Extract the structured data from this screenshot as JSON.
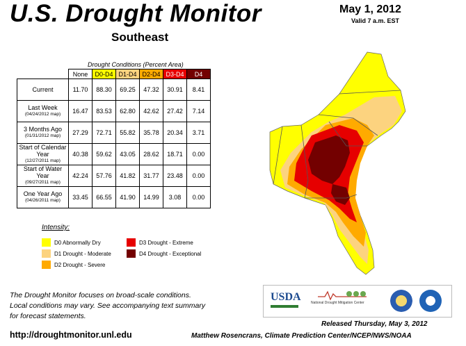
{
  "header": {
    "title": "U.S. Drought Monitor",
    "region": "Southeast",
    "date": "May 1, 2012",
    "valid": "Valid 7 a.m. EST"
  },
  "table": {
    "caption": "Drought Conditions (Percent Area)",
    "columns": [
      "None",
      "D0-D4",
      "D1-D4",
      "D2-D4",
      "D3-D4",
      "D4"
    ],
    "rows": [
      {
        "label": "Current",
        "sub": "",
        "values": [
          "11.70",
          "88.30",
          "69.25",
          "47.32",
          "30.91",
          "8.41"
        ]
      },
      {
        "label": "Last Week",
        "sub": "(04/24/2012 map)",
        "values": [
          "16.47",
          "83.53",
          "62.80",
          "42.62",
          "27.42",
          "7.14"
        ]
      },
      {
        "label": "3 Months Ago",
        "sub": "(01/31/2012 map)",
        "values": [
          "27.29",
          "72.71",
          "55.82",
          "35.78",
          "20.34",
          "3.71"
        ]
      },
      {
        "label": "Start of Calendar Year",
        "sub": "(12/27/2011 map)",
        "values": [
          "40.38",
          "59.62",
          "43.05",
          "28.62",
          "18.71",
          "0.00"
        ]
      },
      {
        "label": "Start of Water Year",
        "sub": "(09/27/2011 map)",
        "values": [
          "42.24",
          "57.76",
          "41.82",
          "31.77",
          "23.48",
          "0.00"
        ]
      },
      {
        "label": "One Year Ago",
        "sub": "(04/26/2011 map)",
        "values": [
          "33.45",
          "66.55",
          "41.90",
          "14.99",
          "3.08",
          "0.00"
        ]
      }
    ]
  },
  "legend": {
    "title": "Intensity:",
    "items": [
      {
        "label": "D0 Abnormally Dry",
        "color": "#ffff00"
      },
      {
        "label": "D1 Drought - Moderate",
        "color": "#fcd37f"
      },
      {
        "label": "D2 Drought - Severe",
        "color": "#ffaa00"
      },
      {
        "label": "D3 Drought - Extreme",
        "color": "#e60000"
      },
      {
        "label": "D4 Drought - Exceptional",
        "color": "#730000"
      }
    ]
  },
  "footer": {
    "note_lines": [
      "The Drought Monitor focuses on broad-scale conditions.",
      "Local conditions may vary. See accompanying text summary",
      "for forecast statements."
    ],
    "url": "http://droughtmonitor.unl.edu",
    "released": "Released Thursday, May 3, 2012",
    "author": "Matthew Rosencrans, Climate Prediction Center/NCEP/NWS/NOAA"
  },
  "logos": {
    "usda": "USDA",
    "ndmc": "National Drought Mitigation Center"
  },
  "colors": {
    "none": "#ffffff",
    "d0": "#ffff00",
    "d1": "#fcd37f",
    "d2": "#ffaa00",
    "d3": "#e60000",
    "d4": "#730000",
    "usda_blue": "#1c4a8f",
    "usda_green": "#2f7d32"
  }
}
